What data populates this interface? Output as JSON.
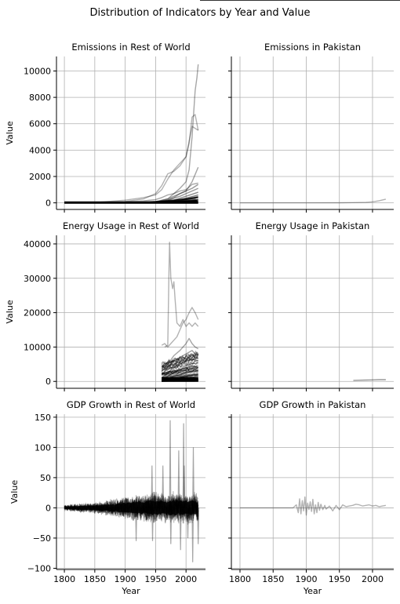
{
  "figure": {
    "suptitle": "Distribution of Indicators by Year and Value",
    "ylabel": "Value",
    "xlabel": "Year"
  },
  "chart_data": [
    {
      "type": "line",
      "title": "Emissions in Rest of World",
      "xlim": [
        1787,
        2032
      ],
      "ylim": [
        -500,
        11100
      ],
      "x_ticks": [
        1800,
        1850,
        1900,
        1950,
        2000
      ],
      "y_ticks": [
        0,
        2000,
        4000,
        6000,
        8000,
        10000
      ],
      "y_tick_labels": [
        "0",
        "2000",
        "4000",
        "6000",
        "8000",
        "10000"
      ],
      "show_y_tick_labels": true,
      "show_x_tick_labels": false,
      "grid": true,
      "series": [
        {
          "x": [
            1800,
            1850,
            1900,
            1930,
            1950,
            1960,
            1970,
            1980,
            1990,
            2000,
            2010,
            2020
          ],
          "y": [
            0,
            20,
            80,
            150,
            250,
            400,
            600,
            700,
            900,
            1000,
            1400,
            1500
          ],
          "alpha": 0.35
        },
        {
          "x": [
            1800,
            1850,
            1900,
            1930,
            1950,
            1960,
            1970,
            1980,
            1990,
            2000,
            2005,
            2010,
            2015,
            2020
          ],
          "y": [
            0,
            30,
            200,
            400,
            600,
            1000,
            1800,
            2500,
            3000,
            3500,
            4500,
            6500,
            6700,
            5500
          ],
          "alpha": 0.3
        },
        {
          "x": [
            1800,
            1850,
            1900,
            1930,
            1950,
            1960,
            1970,
            1980,
            1990,
            2000,
            2010,
            2020
          ],
          "y": [
            0,
            10,
            100,
            300,
            700,
            1300,
            2200,
            2400,
            2800,
            3500,
            5800,
            5500
          ],
          "alpha": 0.3
        },
        {
          "x": [
            1850,
            1900,
            1950,
            1970,
            1980,
            1990,
            2000,
            2005,
            2010,
            2015,
            2018,
            2020
          ],
          "y": [
            0,
            20,
            100,
            300,
            700,
            1100,
            1600,
            2500,
            5000,
            8500,
            9500,
            10500
          ],
          "alpha": 0.35
        },
        {
          "x": [
            1900,
            1950,
            1970,
            1980,
            1990,
            2000,
            2010,
            2020
          ],
          "y": [
            0,
            50,
            200,
            400,
            700,
            900,
            1600,
            2700
          ],
          "alpha": 0.35
        },
        {
          "x": [
            1900,
            1950,
            1970,
            1990,
            2010,
            2020
          ],
          "y": [
            0,
            60,
            300,
            700,
            1100,
            1400
          ],
          "alpha": 0.4
        },
        {
          "x": [
            1900,
            1950,
            1970,
            1990,
            2010,
            2020
          ],
          "y": [
            0,
            40,
            200,
            500,
            900,
            1100
          ],
          "alpha": 0.4
        },
        {
          "x": [
            1900,
            1950,
            1980,
            2000,
            2020
          ],
          "y": [
            0,
            30,
            200,
            500,
            800
          ],
          "alpha": 0.45
        },
        {
          "x": [
            1900,
            1960,
            1980,
            2000,
            2020
          ],
          "y": [
            0,
            40,
            150,
            350,
            600
          ],
          "alpha": 0.5
        },
        {
          "x": [
            1950,
            1980,
            2000,
            2020
          ],
          "y": [
            0,
            100,
            250,
            400
          ],
          "alpha": 0.55
        },
        {
          "x": [
            1950,
            1980,
            2000,
            2020
          ],
          "y": [
            0,
            60,
            150,
            250
          ],
          "alpha": 0.6
        },
        {
          "x": [
            1950,
            1990,
            2020
          ],
          "y": [
            0,
            60,
            150
          ],
          "alpha": 0.7
        }
      ]
    },
    {
      "type": "line",
      "title": "Emissions in Pakistan",
      "xlim": [
        1787,
        2032
      ],
      "ylim": [
        -500,
        11100
      ],
      "x_ticks": [
        1800,
        1850,
        1900,
        1950,
        2000
      ],
      "y_ticks": [
        0,
        2000,
        4000,
        6000,
        8000,
        10000
      ],
      "show_y_tick_labels": false,
      "show_x_tick_labels": false,
      "grid": true,
      "series": [
        {
          "x": [
            1800,
            1900,
            1950,
            1970,
            1990,
            2000,
            2010,
            2020
          ],
          "y": [
            0,
            0,
            3,
            15,
            40,
            80,
            160,
            280
          ],
          "alpha": 0.3
        }
      ]
    },
    {
      "type": "line",
      "title": "Energy Usage in Rest of World",
      "xlim": [
        1787,
        2032
      ],
      "ylim": [
        -2000,
        42500
      ],
      "x_ticks": [
        1800,
        1850,
        1900,
        1950,
        2000
      ],
      "y_ticks": [
        0,
        10000,
        20000,
        30000,
        40000
      ],
      "y_tick_labels": [
        "0",
        "10000",
        "20000",
        "30000",
        "40000"
      ],
      "show_y_tick_labels": true,
      "show_x_tick_labels": false,
      "grid": true,
      "series": [
        {
          "x": [
            1965,
            1970,
            1972,
            1973,
            1975,
            1978,
            1980,
            1982,
            1985,
            1990,
            1995,
            2000,
            2005,
            2010,
            2015,
            2020
          ],
          "y": [
            10000,
            10500,
            33000,
            40500,
            30000,
            27000,
            29000,
            24000,
            17000,
            16000,
            18000,
            16000,
            17000,
            16000,
            17000,
            16000
          ],
          "alpha": 0.3
        },
        {
          "x": [
            1960,
            1965,
            1970,
            1975,
            1980,
            1985,
            1990,
            1995,
            2000,
            2005,
            2010,
            2015,
            2020
          ],
          "y": [
            10500,
            11000,
            10000,
            11000,
            12000,
            13000,
            15000,
            17000,
            18000,
            20000,
            21500,
            20000,
            18000
          ],
          "alpha": 0.3
        },
        {
          "x": [
            1960,
            1970,
            1980,
            1990,
            2000,
            2005,
            2010,
            2015,
            2020
          ],
          "y": [
            3000,
            5000,
            7500,
            9000,
            11000,
            12500,
            11000,
            10000,
            9500
          ],
          "alpha": 0.35
        },
        {
          "x": [
            1960,
            1970,
            1980,
            1990,
            2000,
            2010,
            2015,
            2020
          ],
          "y": [
            2000,
            4000,
            6000,
            7000,
            8000,
            9000,
            8000,
            7500
          ],
          "alpha": 0.4
        },
        {
          "x": [
            1960,
            1970,
            1980,
            1990,
            2000,
            2010,
            2020
          ],
          "y": [
            1000,
            2500,
            4000,
            5000,
            6000,
            6500,
            6000
          ],
          "alpha": 0.45
        },
        {
          "x": [
            1960,
            1970,
            1980,
            1990,
            2000,
            2010,
            2020
          ],
          "y": [
            500,
            1500,
            2500,
            3500,
            4000,
            4500,
            4200
          ],
          "alpha": 0.5
        },
        {
          "x": [
            1960,
            1970,
            1980,
            1990,
            2000,
            2010,
            2020
          ],
          "y": [
            200,
            800,
            1500,
            2000,
            2500,
            3000,
            3000
          ],
          "alpha": 0.6
        },
        {
          "x": [
            1960,
            1970,
            1980,
            1990,
            2000,
            2010,
            2020
          ],
          "y": [
            100,
            400,
            800,
            1200,
            1500,
            1800,
            2000
          ],
          "alpha": 0.7
        },
        {
          "x": [
            1960,
            1990,
            2020
          ],
          "y": [
            50,
            300,
            600
          ],
          "alpha": 0.8
        }
      ]
    },
    {
      "type": "line",
      "title": "Energy Usage in Pakistan",
      "xlim": [
        1787,
        2032
      ],
      "ylim": [
        -2000,
        42500
      ],
      "x_ticks": [
        1800,
        1850,
        1900,
        1950,
        2000
      ],
      "y_ticks": [
        0,
        10000,
        20000,
        30000,
        40000
      ],
      "show_y_tick_labels": false,
      "show_x_tick_labels": false,
      "grid": true,
      "series": [
        {
          "x": [
            1971,
            1980,
            1990,
            2000,
            2010,
            2020
          ],
          "y": [
            300,
            350,
            400,
            450,
            500,
            500
          ],
          "alpha": 0.4
        }
      ]
    },
    {
      "type": "line",
      "title": "GDP Growth in Rest of World",
      "xlim": [
        1787,
        2032
      ],
      "ylim": [
        -102,
        155
      ],
      "x_ticks": [
        1800,
        1850,
        1900,
        1950,
        2000
      ],
      "x_tick_labels": [
        "1800",
        "1850",
        "1900",
        "1950",
        "2000"
      ],
      "y_ticks": [
        -100,
        -50,
        0,
        50,
        100,
        150
      ],
      "y_tick_labels": [
        "−100",
        "−50",
        "0",
        "50",
        "100",
        "150"
      ],
      "show_y_tick_labels": true,
      "show_x_tick_labels": true,
      "grid": true,
      "noise_envelope": {
        "x": [
          1800,
          1820,
          1840,
          1860,
          1880,
          1900,
          1910,
          1920,
          1930,
          1940,
          1950,
          1960,
          1970,
          1980,
          1990,
          2000,
          2010,
          2020
        ],
        "amp": [
          5,
          7,
          9,
          12,
          15,
          20,
          22,
          26,
          24,
          28,
          30,
          26,
          28,
          30,
          28,
          30,
          28,
          26
        ]
      },
      "spikes": [
        {
          "x": 1918,
          "y": -55
        },
        {
          "x": 1944,
          "y": 70
        },
        {
          "x": 1945,
          "y": -55
        },
        {
          "x": 1962,
          "y": 70
        },
        {
          "x": 1974,
          "y": 145
        },
        {
          "x": 1975,
          "y": -60
        },
        {
          "x": 1988,
          "y": 95
        },
        {
          "x": 1991,
          "y": -70
        },
        {
          "x": 1996,
          "y": 140
        },
        {
          "x": 1997,
          "y": 70
        },
        {
          "x": 2003,
          "y": -50
        },
        {
          "x": 2011,
          "y": -90
        },
        {
          "x": 2012,
          "y": 100
        },
        {
          "x": 2020,
          "y": -60
        }
      ]
    },
    {
      "type": "line",
      "title": "GDP Growth in Pakistan",
      "xlim": [
        1787,
        2032
      ],
      "ylim": [
        -102,
        155
      ],
      "x_ticks": [
        1800,
        1850,
        1900,
        1950,
        2000
      ],
      "x_tick_labels": [
        "1800",
        "1850",
        "1900",
        "1950",
        "2000"
      ],
      "y_ticks": [
        -100,
        -50,
        0,
        50,
        100,
        150
      ],
      "show_y_tick_labels": false,
      "show_x_tick_labels": true,
      "grid": true,
      "series": [
        {
          "x": [
            1800,
            1880,
            1885,
            1888,
            1890,
            1892,
            1894,
            1896,
            1898,
            1900,
            1902,
            1904,
            1906,
            1908,
            1910,
            1912,
            1914,
            1916,
            1918,
            1920,
            1922,
            1925,
            1928,
            1930,
            1935,
            1940,
            1945,
            1950,
            1955,
            1960,
            1965,
            1970,
            1975,
            1980,
            1985,
            1990,
            1995,
            2000,
            2005,
            2010,
            2015,
            2020
          ],
          "y": [
            0,
            0,
            5,
            -8,
            15,
            -10,
            12,
            -5,
            18,
            -12,
            8,
            -3,
            10,
            -6,
            14,
            -10,
            5,
            -8,
            9,
            -4,
            6,
            -3,
            4,
            -2,
            3,
            -5,
            4,
            -3,
            5,
            2,
            3,
            4,
            6,
            5,
            3,
            4,
            5,
            3,
            4,
            2,
            3,
            4
          ],
          "alpha": 0.3
        }
      ]
    }
  ]
}
